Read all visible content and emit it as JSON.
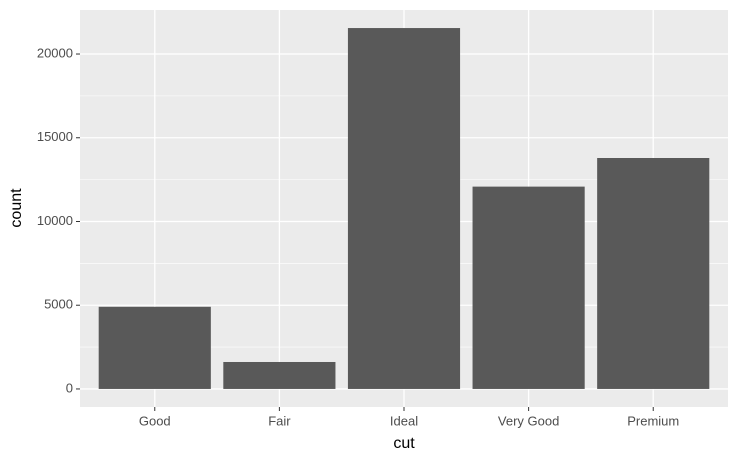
{
  "chart_data": {
    "type": "bar",
    "x_label": "cut",
    "y_label": "count",
    "categories": [
      "Good",
      "Fair",
      "Ideal",
      "Very Good",
      "Premium"
    ],
    "values": [
      4906,
      1610,
      21551,
      12082,
      13791
    ],
    "color": "#595959",
    "ylim": [
      -1077.55,
      22628.55
    ],
    "yticks": [
      0,
      5000,
      10000,
      15000,
      20000
    ],
    "grid": true
  }
}
